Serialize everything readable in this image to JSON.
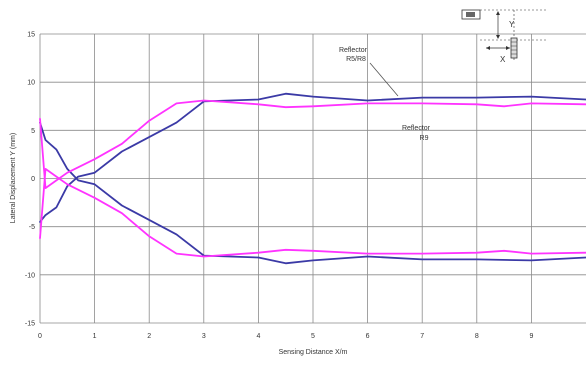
{
  "chart_data": {
    "type": "line",
    "title": "",
    "xlabel": "Sensing Distance X/m",
    "ylabel": "Lateral Displacement Y (mm)",
    "xlim": [
      0,
      10
    ],
    "ylim": [
      -15,
      15
    ],
    "x_ticks": [
      "0",
      "1",
      "2",
      "3",
      "4",
      "5",
      "6",
      "7",
      "8",
      "9"
    ],
    "y_ticks": [
      "15",
      "10",
      "5",
      "0",
      "-5",
      "-10",
      "-15"
    ],
    "grid": true,
    "series": [
      {
        "name": "Reflector R5/R8",
        "color": "#3b3aa6",
        "curves": [
          {
            "x": [
              0,
              0.1,
              0.3,
              0.5,
              0.7,
              1.0,
              1.5,
              2.0,
              2.5,
              3.0,
              4.0,
              4.5,
              5.0,
              6.0,
              7.0,
              8.0,
              9.0,
              10.0
            ],
            "y": [
              5.8,
              4.0,
              3.0,
              1.0,
              -0.2,
              -0.6,
              -2.8,
              -4.3,
              -5.8,
              -8.0,
              -8.2,
              -8.8,
              -8.5,
              -8.1,
              -8.4,
              -8.4,
              -8.5,
              -8.2
            ]
          },
          {
            "x": [
              0,
              0.1,
              0.3,
              0.5,
              0.7,
              1.0,
              1.5,
              2.0,
              2.5,
              3.0,
              4.0,
              4.5,
              5.0,
              6.0,
              7.0,
              8.0,
              9.0,
              10.0
            ],
            "y": [
              -4.5,
              -3.8,
              -3.0,
              -0.8,
              0.2,
              0.6,
              2.8,
              4.3,
              5.8,
              8.0,
              8.2,
              8.8,
              8.5,
              8.1,
              8.4,
              8.4,
              8.5,
              8.2
            ]
          }
        ]
      },
      {
        "name": "Reflector R9",
        "color": "#ff33ff",
        "curves": [
          {
            "x": [
              0,
              0.1,
              0.3,
              0.5,
              1.0,
              1.5,
              2.0,
              2.5,
              3.0,
              4.0,
              4.5,
              5.0,
              6.0,
              7.0,
              8.0,
              8.5,
              9.0,
              10.0
            ],
            "y": [
              6.2,
              -1.0,
              -0.2,
              0.6,
              2.0,
              3.6,
              6.0,
              7.8,
              8.1,
              7.7,
              7.4,
              7.5,
              7.8,
              7.8,
              7.7,
              7.5,
              7.8,
              7.7
            ]
          },
          {
            "x": [
              0,
              0.1,
              0.3,
              0.5,
              1.0,
              1.5,
              2.0,
              2.5,
              3.0,
              4.0,
              4.5,
              5.0,
              6.0,
              7.0,
              8.0,
              8.5,
              9.0,
              10.0
            ],
            "y": [
              -6.2,
              1.0,
              0.2,
              -0.6,
              -2.0,
              -3.6,
              -6.0,
              -7.8,
              -8.1,
              -7.7,
              -7.4,
              -7.5,
              -7.8,
              -7.8,
              -7.7,
              -7.5,
              -7.8,
              -7.7
            ]
          }
        ]
      }
    ],
    "annotations": [
      {
        "lines": [
          "Reflector",
          "R5/R8"
        ]
      },
      {
        "lines": [
          "Reflector",
          "R9"
        ]
      }
    ],
    "inset": {
      "labels": [
        "Y",
        "X"
      ]
    }
  }
}
